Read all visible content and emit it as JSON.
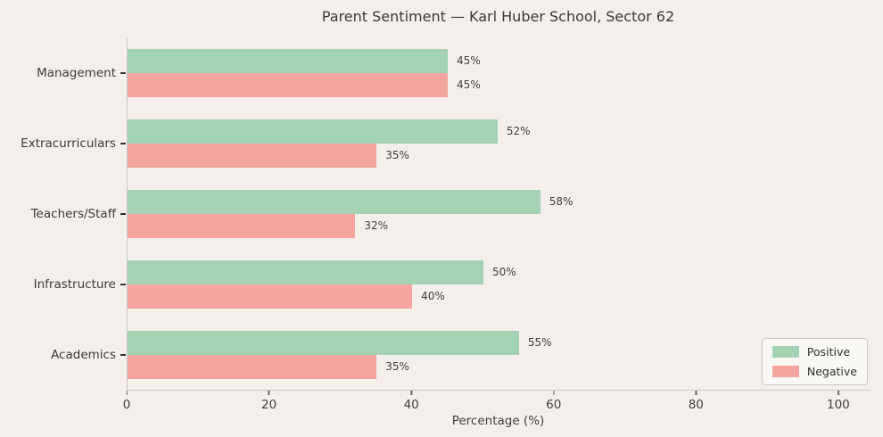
{
  "title": "Parent Sentiment — Karl Huber School, Sector 62",
  "colors": {
    "background": "#f4efea",
    "positive": "#a5d2b4",
    "negative": "#f4a59f",
    "axis_spine": "#c8c9c8",
    "text": "#3b3b3b",
    "legend_background": "#faf8f5"
  },
  "chart_data": {
    "type": "bar",
    "orientation": "horizontal",
    "title": "Parent Sentiment — Karl Huber School, Sector 62",
    "categories": [
      "Management",
      "Extracurriculars",
      "Teachers/Staff",
      "Infrastructure",
      "Academics"
    ],
    "series": [
      {
        "name": "Positive",
        "color": "#a5d2b4",
        "values": [
          45,
          52,
          58,
          50,
          55
        ]
      },
      {
        "name": "Negative",
        "color": "#f4a59f",
        "values": [
          45,
          35,
          32,
          40,
          35
        ]
      }
    ],
    "value_suffix": "%",
    "value_labels": {
      "Positive": [
        "45%",
        "52%",
        "58%",
        "50%",
        "55%"
      ],
      "Negative": [
        "45%",
        "35%",
        "32%",
        "40%",
        "35%"
      ]
    },
    "xlabel": "Percentage (%)",
    "xticks": [
      0,
      20,
      40,
      60,
      80,
      100
    ],
    "xlim": [
      0,
      104.4
    ],
    "grid": false,
    "legend": {
      "position": "lower right",
      "entries": [
        "Positive",
        "Negative"
      ]
    }
  }
}
